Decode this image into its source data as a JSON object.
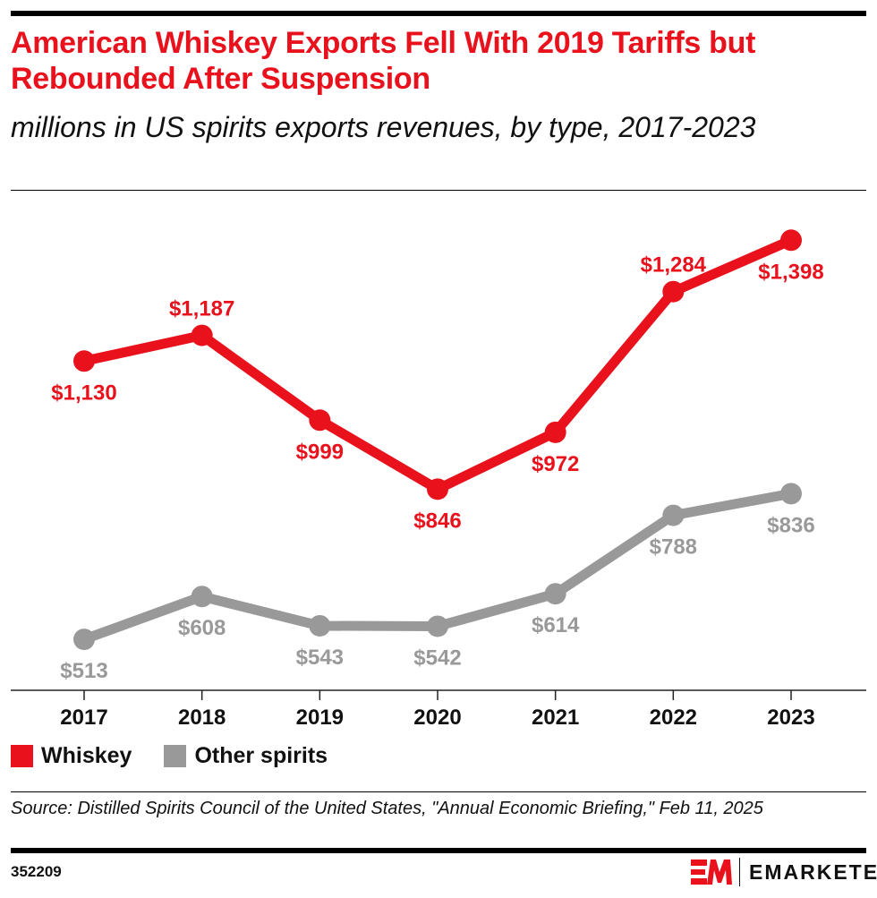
{
  "title": "American Whiskey Exports Fell With 2019 Tariffs but Rebounded After Suspension",
  "subtitle": "millions in US spirits exports revenues, by type, 2017-2023",
  "source": "Source: Distilled Spirits Council of the United States, \"Annual Economic Briefing,\" Feb 11, 2025",
  "chart_id": "352209",
  "brand": "EMARKETER",
  "colors": {
    "whiskey": "#e8111c",
    "other": "#999999"
  },
  "chart_data": {
    "type": "line",
    "categories": [
      "2017",
      "2018",
      "2019",
      "2020",
      "2021",
      "2022",
      "2023"
    ],
    "ylim": [
      400,
      1480
    ],
    "grid": false,
    "legend_position": "bottom-left",
    "series": [
      {
        "name": "Whiskey",
        "values": [
          1130,
          1187,
          999,
          846,
          972,
          1284,
          1398
        ],
        "labels": [
          "$1,130",
          "$1,187",
          "$999",
          "$846",
          "$972",
          "$1,284",
          "$1,398"
        ]
      },
      {
        "name": "Other spirits",
        "values": [
          513,
          608,
          543,
          542,
          614,
          788,
          836
        ],
        "labels": [
          "$513",
          "$608",
          "$543",
          "$542",
          "$614",
          "$788",
          "$836"
        ]
      }
    ]
  }
}
